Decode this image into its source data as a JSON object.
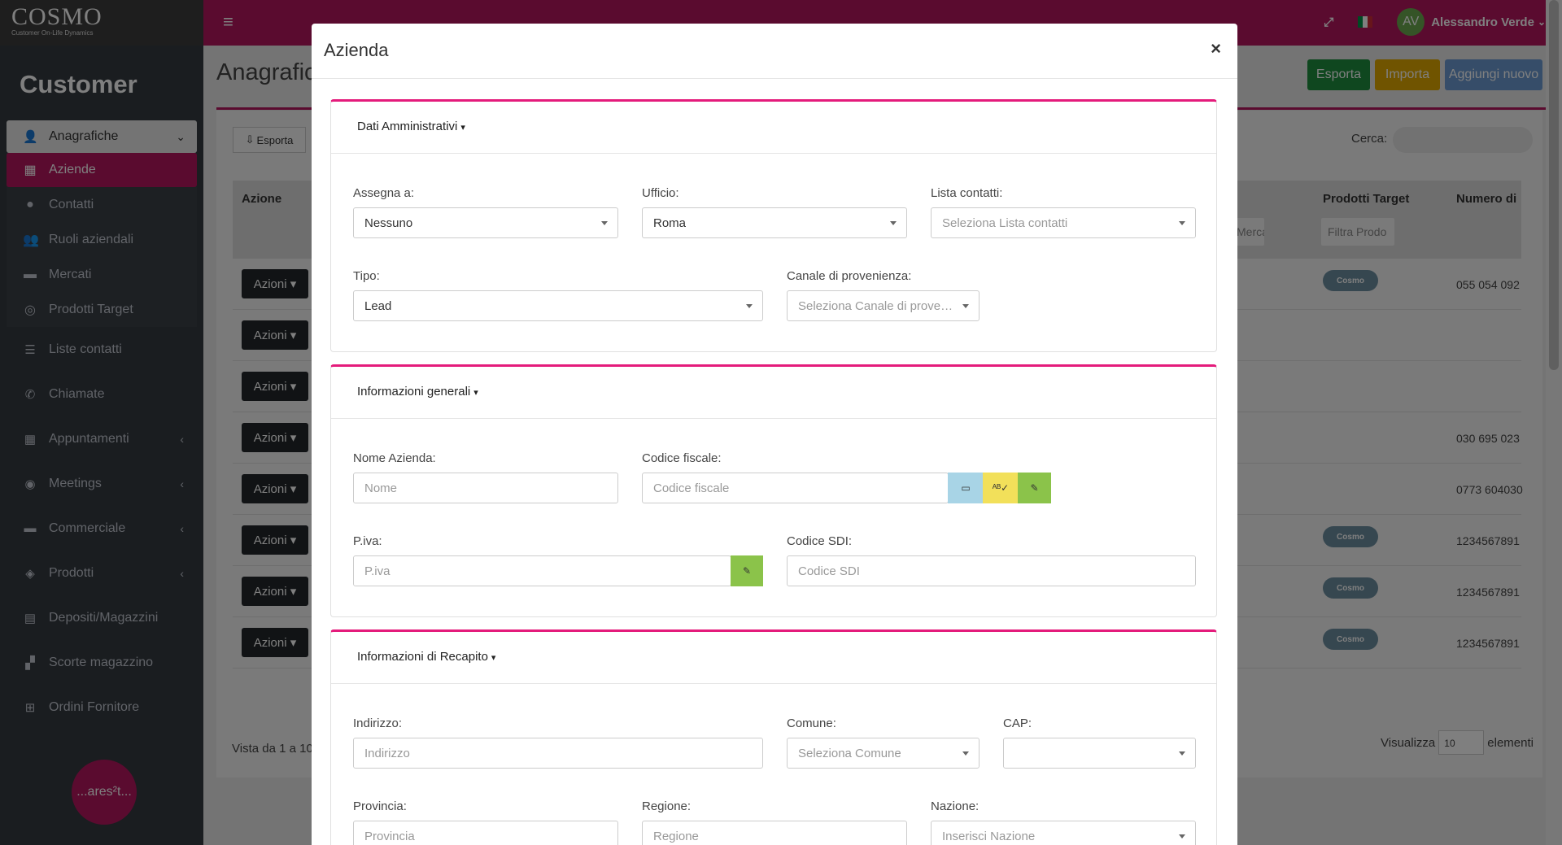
{
  "brand": {
    "logo": "COSMO",
    "subtitle": "Customer On-Life Dynamics"
  },
  "sidebar": {
    "title": "Customer",
    "group_open": {
      "label": "Anagrafiche",
      "icon": "user-plus-icon"
    },
    "sub_items": [
      {
        "label": "Aziende",
        "icon": "building-icon",
        "active": true
      },
      {
        "label": "Contatti",
        "icon": "user-icon"
      },
      {
        "label": "Ruoli aziendali",
        "icon": "users-icon"
      },
      {
        "label": "Mercati",
        "icon": "store-icon"
      },
      {
        "label": "Prodotti Target",
        "icon": "target-icon"
      }
    ],
    "items": [
      {
        "label": "Liste contatti",
        "icon": "list-icon"
      },
      {
        "label": "Chiamate",
        "icon": "phone-icon"
      },
      {
        "label": "Appuntamenti",
        "icon": "calendar-icon",
        "expandable": true
      },
      {
        "label": "Meetings",
        "icon": "eye-icon",
        "expandable": true
      },
      {
        "label": "Commerciale",
        "icon": "briefcase-icon",
        "expandable": true
      },
      {
        "label": "Prodotti",
        "icon": "box-icon",
        "expandable": true
      },
      {
        "label": "Depositi/Magazzini",
        "icon": "warehouse-icon"
      },
      {
        "label": "Scorte magazzino",
        "icon": "boxes-icon"
      },
      {
        "label": "Ordini Fornitore",
        "icon": "basket-icon"
      }
    ],
    "footer_badge": "...ares²t..."
  },
  "topbar": {
    "user_initials": "AV",
    "user_name": "Alessandro Verde"
  },
  "page": {
    "title": "Anagrafiche",
    "buttons": {
      "export": "Esporta",
      "import": "Importa",
      "add": "Aggiungi nuovo"
    },
    "export_dropdown": "Esporta",
    "search_label": "Cerca:",
    "columns": {
      "action": "Azione",
      "target": "Prodotti Target",
      "number": "Numero di"
    },
    "filters": {
      "market": "Mercat",
      "target": "Filtra Prodo"
    },
    "row_action": "Azioni",
    "row_badge": "Cosmo",
    "numbers": [
      "055 054 092",
      "030 695 023",
      "0773 604030",
      "1234567891",
      "1234567891",
      "1234567891"
    ],
    "footer_info": "Vista da 1 a 10",
    "page_size_label": "Visualizza",
    "page_size": "10",
    "page_size_suffix": "elementi"
  },
  "modal": {
    "title": "Azienda",
    "close": "×",
    "sections": {
      "admin": {
        "title": "Dati Amministrativi",
        "assign_label": "Assegna a:",
        "assign_value": "Nessuno",
        "office_label": "Ufficio:",
        "office_value": "Roma",
        "contacts_label": "Lista contatti:",
        "contacts_placeholder": "Seleziona Lista contatti",
        "type_label": "Tipo:",
        "type_value": "Lead",
        "channel_label": "Canale di provenienza:",
        "channel_placeholder": "Seleziona Canale di provenienza"
      },
      "general": {
        "title": "Informazioni generali",
        "name_label": "Nome Azienda:",
        "name_placeholder": "Nome",
        "fiscal_label": "Codice fiscale:",
        "fiscal_placeholder": "Codice fiscale",
        "vat_label": "P.iva:",
        "vat_placeholder": "P.iva",
        "sdi_label": "Codice SDI:",
        "sdi_placeholder": "Codice SDI"
      },
      "address": {
        "title": "Informazioni di Recapito",
        "address_label": "Indirizzo:",
        "address_placeholder": "Indirizzo",
        "city_label": "Comune:",
        "city_placeholder": "Seleziona Comune",
        "cap_label": "CAP:",
        "province_label": "Provincia:",
        "province_placeholder": "Provincia",
        "region_label": "Regione:",
        "region_placeholder": "Regione",
        "country_label": "Nazione:",
        "country_placeholder": "Inserisci Nazione"
      }
    }
  },
  "colors": {
    "brand": "#b5175f",
    "accent": "#e41b7b",
    "sidebar": "#343a40",
    "export_btn": "#1e8e3e",
    "import_btn": "#e0a800",
    "add_btn": "#6c9bd2"
  }
}
